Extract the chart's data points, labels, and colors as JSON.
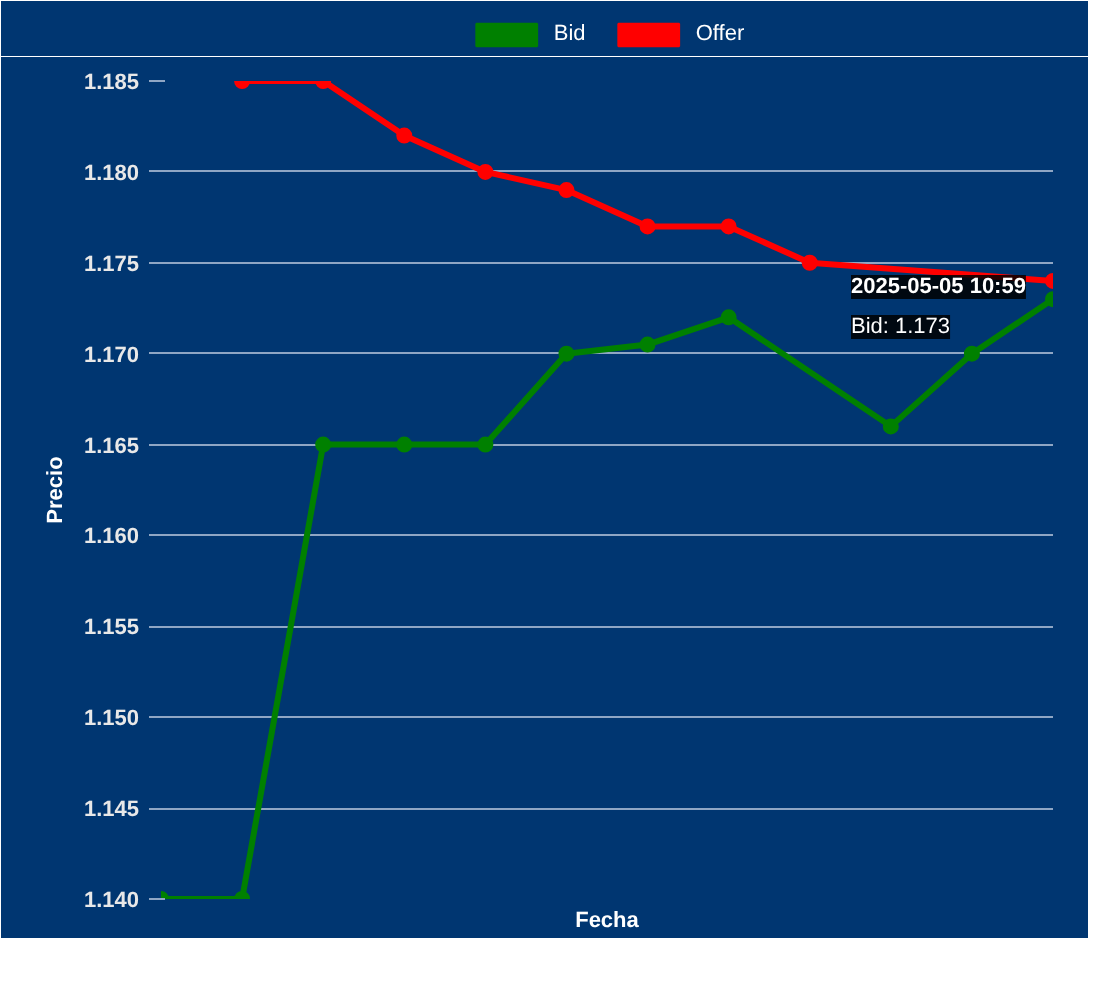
{
  "chart_data": {
    "type": "line",
    "xlabel": "Fecha",
    "ylabel": "Precio",
    "categories": [
      null,
      null,
      null,
      null,
      null,
      null,
      null,
      null,
      null,
      null,
      null,
      null
    ],
    "ylim": [
      1.14,
      1.185
    ],
    "yticks": [
      {
        "value": 1.14,
        "label": "1.140"
      },
      {
        "value": 1.145,
        "label": "1.145"
      },
      {
        "value": 1.15,
        "label": "1.150"
      },
      {
        "value": 1.155,
        "label": "1.155"
      },
      {
        "value": 1.16,
        "label": "1.160"
      },
      {
        "value": 1.165,
        "label": "1.165"
      },
      {
        "value": 1.17,
        "label": "1.170"
      },
      {
        "value": 1.175,
        "label": "1.175"
      },
      {
        "value": 1.18,
        "label": "1.180"
      },
      {
        "value": 1.185,
        "label": "1.185"
      }
    ],
    "grid": "y",
    "legend": "top",
    "marker": "circle",
    "line_style": "solid",
    "series": [
      {
        "name": "Bid",
        "color": "#008000",
        "values": [
          1.14,
          1.14,
          1.165,
          1.165,
          1.165,
          1.17,
          1.1705,
          1.172,
          null,
          1.166,
          1.17,
          1.173
        ]
      },
      {
        "name": "Offer",
        "color": "#ff0000",
        "values": [
          null,
          1.185,
          1.185,
          1.182,
          1.18,
          1.179,
          1.177,
          1.177,
          1.175,
          null,
          null,
          1.174
        ]
      }
    ],
    "annotations": [
      "2025-05-05 10:59",
      "Bid: 1.173"
    ]
  }
}
